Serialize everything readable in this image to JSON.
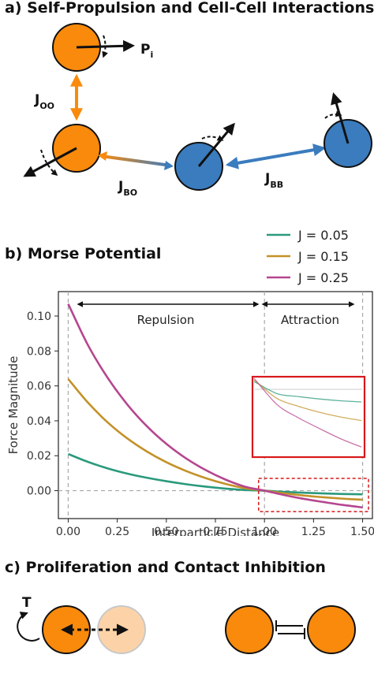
{
  "panel_a": {
    "title": "a) Self-Propulsion and Cell-Cell Interactions",
    "label_p": "P",
    "label_p_sub": "i",
    "label_oo": "J",
    "label_oo_sub": "OO",
    "label_bo": "J",
    "label_bo_sub": "BO",
    "label_bb": "J",
    "label_bb_sub": "BB"
  },
  "panel_b": {
    "title": "b) Morse Potential",
    "legend": [
      "J = 0.05",
      "J = 0.15",
      "J = 0.25"
    ],
    "region_repulsion": "Repulsion",
    "region_attraction": "Attraction"
  },
  "panel_c": {
    "title": "c) Proliferation and Contact Inhibition",
    "label_t": "T"
  },
  "colors": {
    "orange": "#f98a0c",
    "orange_light": "#fcd3a8",
    "blue": "#3a7cbe",
    "series": [
      "#2a9a7c",
      "#c49128",
      "#b5468f"
    ],
    "inset_box": "#d7191c"
  },
  "chart_data": {
    "type": "line",
    "xlabel": "Interparticle Distance",
    "ylabel": "Force Magnitude",
    "xlim": [
      -0.05,
      1.55
    ],
    "ylim": [
      -0.016,
      0.114
    ],
    "xticks": [
      "0.00",
      "0.25",
      "0.50",
      "0.75",
      "1.00",
      "1.25",
      "1.50"
    ],
    "yticks": [
      "0.00",
      "0.02",
      "0.04",
      "0.06",
      "0.08",
      "0.10"
    ],
    "legend_position": "top-right",
    "grid": false,
    "x": [
      0,
      0.1,
      0.2,
      0.3,
      0.4,
      0.5,
      0.6,
      0.7,
      0.8,
      0.9,
      1.0,
      1.1,
      1.2,
      1.3,
      1.4,
      1.5
    ],
    "series": [
      {
        "name": "J = 0.05",
        "values": [
          0.021,
          0.0165,
          0.0128,
          0.0098,
          0.0074,
          0.0054,
          0.0037,
          0.0023,
          0.0012,
          0.0004,
          0.0,
          -0.0007,
          -0.0012,
          -0.0016,
          -0.0019,
          -0.0021
        ]
      },
      {
        "name": "J = 0.15",
        "values": [
          0.064,
          0.0505,
          0.0392,
          0.03,
          0.0225,
          0.0163,
          0.0113,
          0.0072,
          0.0039,
          0.0014,
          0.0,
          -0.0015,
          -0.0028,
          -0.0038,
          -0.0046,
          -0.0052
        ]
      },
      {
        "name": "J = 0.25",
        "values": [
          0.107,
          0.0835,
          0.0648,
          0.0495,
          0.037,
          0.0268,
          0.0185,
          0.0118,
          0.0064,
          0.0023,
          0.0,
          -0.0025,
          -0.0047,
          -0.0065,
          -0.0082,
          -0.0096
        ]
      }
    ]
  }
}
